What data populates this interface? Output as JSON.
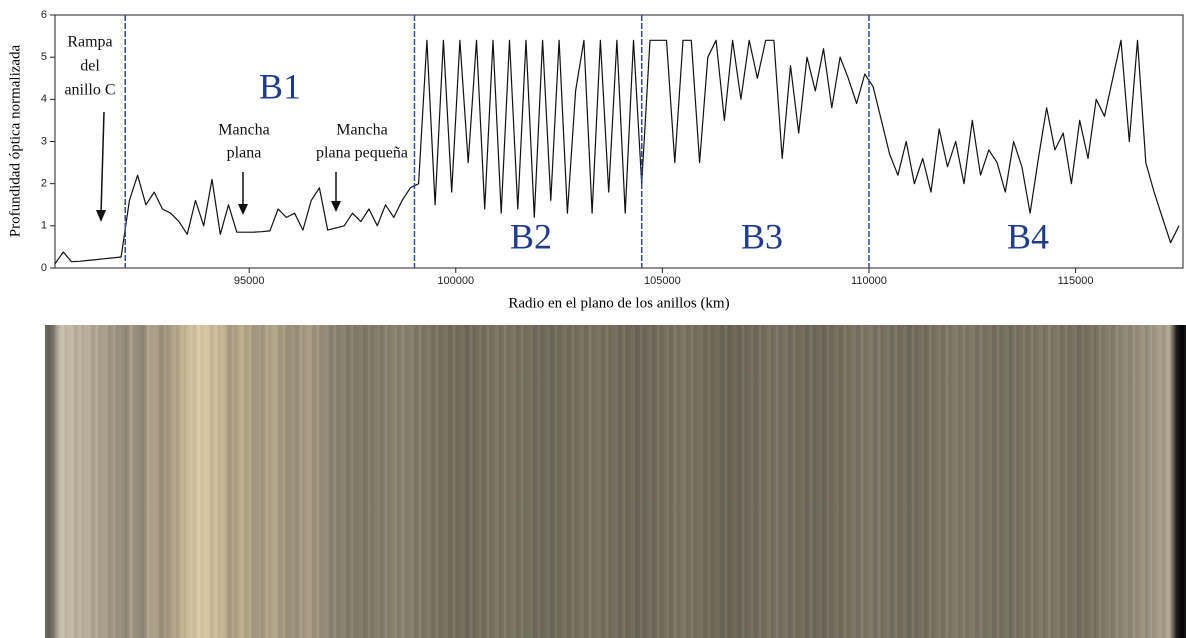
{
  "chart_data": {
    "type": "line",
    "x_label": "Radio en el plano de los anillos (km)",
    "y_label": "Profundidad óptica normalizada",
    "xlim": [
      90300,
      117600
    ],
    "ylim": [
      0,
      6
    ],
    "xticks": [
      95000,
      100000,
      105000,
      110000,
      115000
    ],
    "yticks": [
      0,
      1,
      2,
      3,
      4,
      5,
      6
    ],
    "boundaries": [
      92000,
      99000,
      104500,
      110000
    ],
    "boundary_color": "#2a4d9c",
    "regions": [
      "B1",
      "B2",
      "B3",
      "B4"
    ],
    "annotations": [
      {
        "lines": [
          "Rampa",
          "del",
          "anillo C"
        ]
      },
      {
        "lines": [
          "Mancha",
          "plana"
        ]
      },
      {
        "lines": [
          "Mancha",
          "plana pequeña"
        ]
      }
    ],
    "color": "#111111",
    "x": [
      90300,
      90500,
      90700,
      90900,
      91100,
      91300,
      91500,
      91700,
      91900,
      92100,
      92300,
      92500,
      92700,
      92900,
      93100,
      93300,
      93500,
      93700,
      93900,
      94100,
      94300,
      94500,
      94700,
      94900,
      95100,
      95300,
      95500,
      95700,
      95900,
      96100,
      96300,
      96500,
      96700,
      96900,
      97100,
      97300,
      97500,
      97700,
      97900,
      98100,
      98300,
      98500,
      98700,
      98900,
      99100,
      99300,
      99500,
      99700,
      99900,
      100100,
      100300,
      100500,
      100700,
      100900,
      101100,
      101300,
      101500,
      101700,
      101900,
      102100,
      102300,
      102500,
      102700,
      102900,
      103100,
      103300,
      103500,
      103700,
      103900,
      104100,
      104300,
      104500,
      104700,
      104900,
      105100,
      105300,
      105500,
      105700,
      105900,
      106100,
      106300,
      106500,
      106700,
      106900,
      107100,
      107300,
      107500,
      107700,
      107900,
      108100,
      108300,
      108500,
      108700,
      108900,
      109100,
      109300,
      109500,
      109700,
      109900,
      110100,
      110300,
      110500,
      110700,
      110900,
      111100,
      111300,
      111500,
      111700,
      111900,
      112100,
      112300,
      112500,
      112700,
      112900,
      113100,
      113300,
      113500,
      113700,
      113900,
      114100,
      114300,
      114500,
      114700,
      114900,
      115100,
      115300,
      115500,
      115700,
      115900,
      116100,
      116300,
      116500,
      116700,
      116900,
      117100,
      117300,
      117500
    ],
    "values": [
      0.1,
      0.38,
      0.15,
      0.16,
      0.18,
      0.2,
      0.22,
      0.24,
      0.26,
      1.6,
      2.2,
      1.5,
      1.8,
      1.4,
      1.3,
      1.1,
      0.8,
      1.6,
      1.0,
      2.1,
      0.8,
      1.5,
      0.85,
      0.85,
      0.85,
      0.86,
      0.88,
      1.4,
      1.2,
      1.3,
      0.9,
      1.6,
      1.9,
      0.9,
      0.95,
      1.0,
      1.3,
      1.1,
      1.4,
      1.0,
      1.5,
      1.2,
      1.6,
      1.9,
      2.0,
      5.4,
      1.5,
      5.4,
      1.8,
      5.4,
      2.5,
      5.4,
      1.4,
      5.4,
      1.3,
      5.4,
      1.4,
      5.4,
      1.2,
      5.4,
      1.6,
      5.4,
      1.3,
      4.2,
      5.4,
      1.3,
      5.4,
      1.8,
      5.4,
      1.3,
      5.4,
      2.0,
      5.4,
      5.4,
      5.4,
      2.5,
      5.4,
      5.4,
      2.5,
      5.0,
      5.4,
      3.5,
      5.4,
      4.0,
      5.4,
      4.5,
      5.4,
      5.4,
      2.6,
      4.8,
      3.2,
      5.0,
      4.2,
      5.2,
      3.8,
      5.0,
      4.5,
      3.9,
      4.6,
      4.3,
      3.5,
      2.7,
      2.2,
      3.0,
      2.0,
      2.6,
      1.8,
      3.3,
      2.4,
      3.0,
      2.0,
      3.5,
      2.2,
      2.8,
      2.5,
      1.8,
      3.0,
      2.4,
      1.3,
      2.6,
      3.8,
      2.8,
      3.2,
      2.0,
      3.5,
      2.6,
      4.0,
      3.6,
      4.5,
      5.4,
      3.0,
      5.4,
      2.5,
      1.8,
      1.2,
      0.6,
      1.0
    ]
  }
}
